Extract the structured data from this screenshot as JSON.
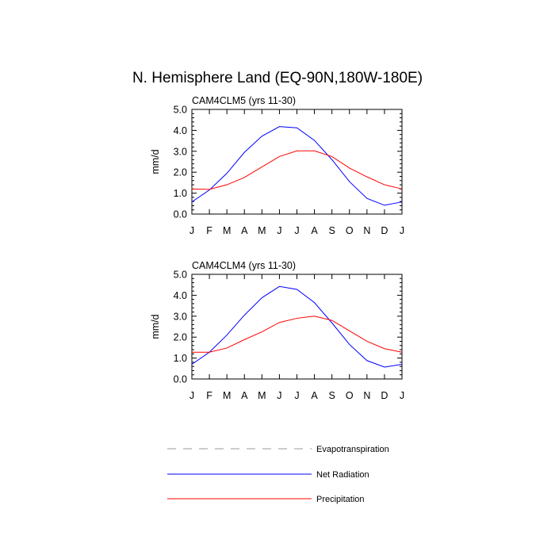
{
  "title": "N. Hemisphere Land (EQ-90N,180W-180E)",
  "chart_data": [
    {
      "type": "line",
      "subtitle": "CAM4CLM5 (yrs 11-30)",
      "ylabel": "mm/d",
      "xlabel": "",
      "categories": [
        "J",
        "F",
        "M",
        "A",
        "M",
        "J",
        "J",
        "A",
        "S",
        "O",
        "N",
        "D",
        "J"
      ],
      "ylim": [
        0,
        5
      ],
      "yticks": [
        "0.0",
        "1.0",
        "2.0",
        "3.0",
        "4.0",
        "5.0"
      ],
      "series": [
        {
          "name": "Net Radiation",
          "color": "#0000ff",
          "values": [
            0.58,
            1.15,
            1.95,
            2.95,
            3.72,
            4.18,
            4.12,
            3.52,
            2.6,
            1.55,
            0.75,
            0.42,
            0.58
          ]
        },
        {
          "name": "Precipitation",
          "color": "#ff0000",
          "values": [
            1.2,
            1.18,
            1.4,
            1.75,
            2.25,
            2.75,
            3.02,
            3.02,
            2.75,
            2.2,
            1.78,
            1.4,
            1.2
          ]
        }
      ]
    },
    {
      "type": "line",
      "subtitle": "CAM4CLM4 (yrs 11-30)",
      "ylabel": "mm/d",
      "xlabel": "",
      "categories": [
        "J",
        "F",
        "M",
        "A",
        "M",
        "J",
        "J",
        "A",
        "S",
        "O",
        "N",
        "D",
        "J"
      ],
      "ylim": [
        0,
        5
      ],
      "yticks": [
        "0.0",
        "1.0",
        "2.0",
        "3.0",
        "4.0",
        "5.0"
      ],
      "series": [
        {
          "name": "Net Radiation",
          "color": "#0000ff",
          "values": [
            0.7,
            1.28,
            2.1,
            3.05,
            3.88,
            4.42,
            4.28,
            3.65,
            2.68,
            1.65,
            0.88,
            0.57,
            0.7
          ]
        },
        {
          "name": "Precipitation",
          "color": "#ff0000",
          "values": [
            1.28,
            1.28,
            1.48,
            1.88,
            2.25,
            2.7,
            2.9,
            3.0,
            2.8,
            2.3,
            1.8,
            1.45,
            1.28
          ]
        }
      ]
    }
  ],
  "legend": [
    {
      "label": "Evapotranspiration",
      "color": "#999999",
      "style": "dashed"
    },
    {
      "label": "Net Radiation",
      "color": "#0000ff",
      "style": "solid"
    },
    {
      "label": "Precipitation",
      "color": "#ff0000",
      "style": "solid"
    }
  ]
}
